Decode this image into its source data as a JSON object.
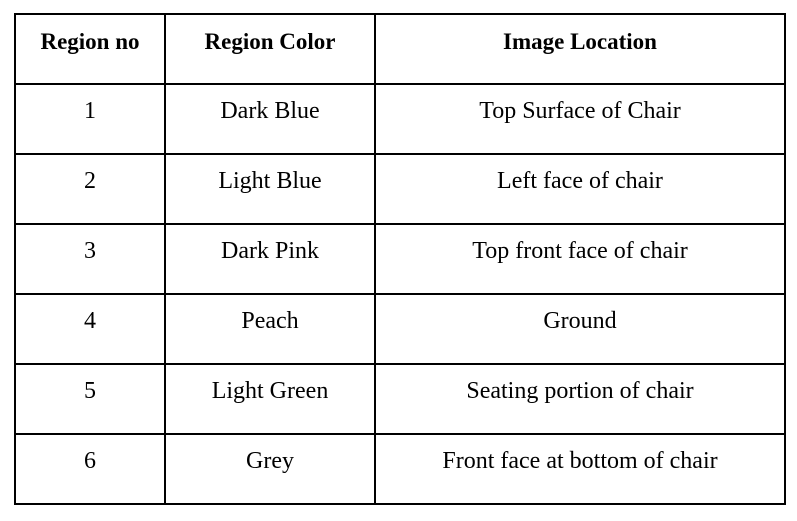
{
  "table": {
    "headers": [
      "Region no",
      "Region Color",
      "Image Location"
    ],
    "rows": [
      [
        "1",
        "Dark Blue",
        "Top Surface of Chair"
      ],
      [
        "2",
        "Light Blue",
        "Left face of chair"
      ],
      [
        "3",
        "Dark Pink",
        "Top front face of chair"
      ],
      [
        "4",
        "Peach",
        "Ground"
      ],
      [
        "5",
        "Light Green",
        "Seating portion of chair"
      ],
      [
        "6",
        "Grey",
        "Front face at bottom of chair"
      ]
    ]
  }
}
